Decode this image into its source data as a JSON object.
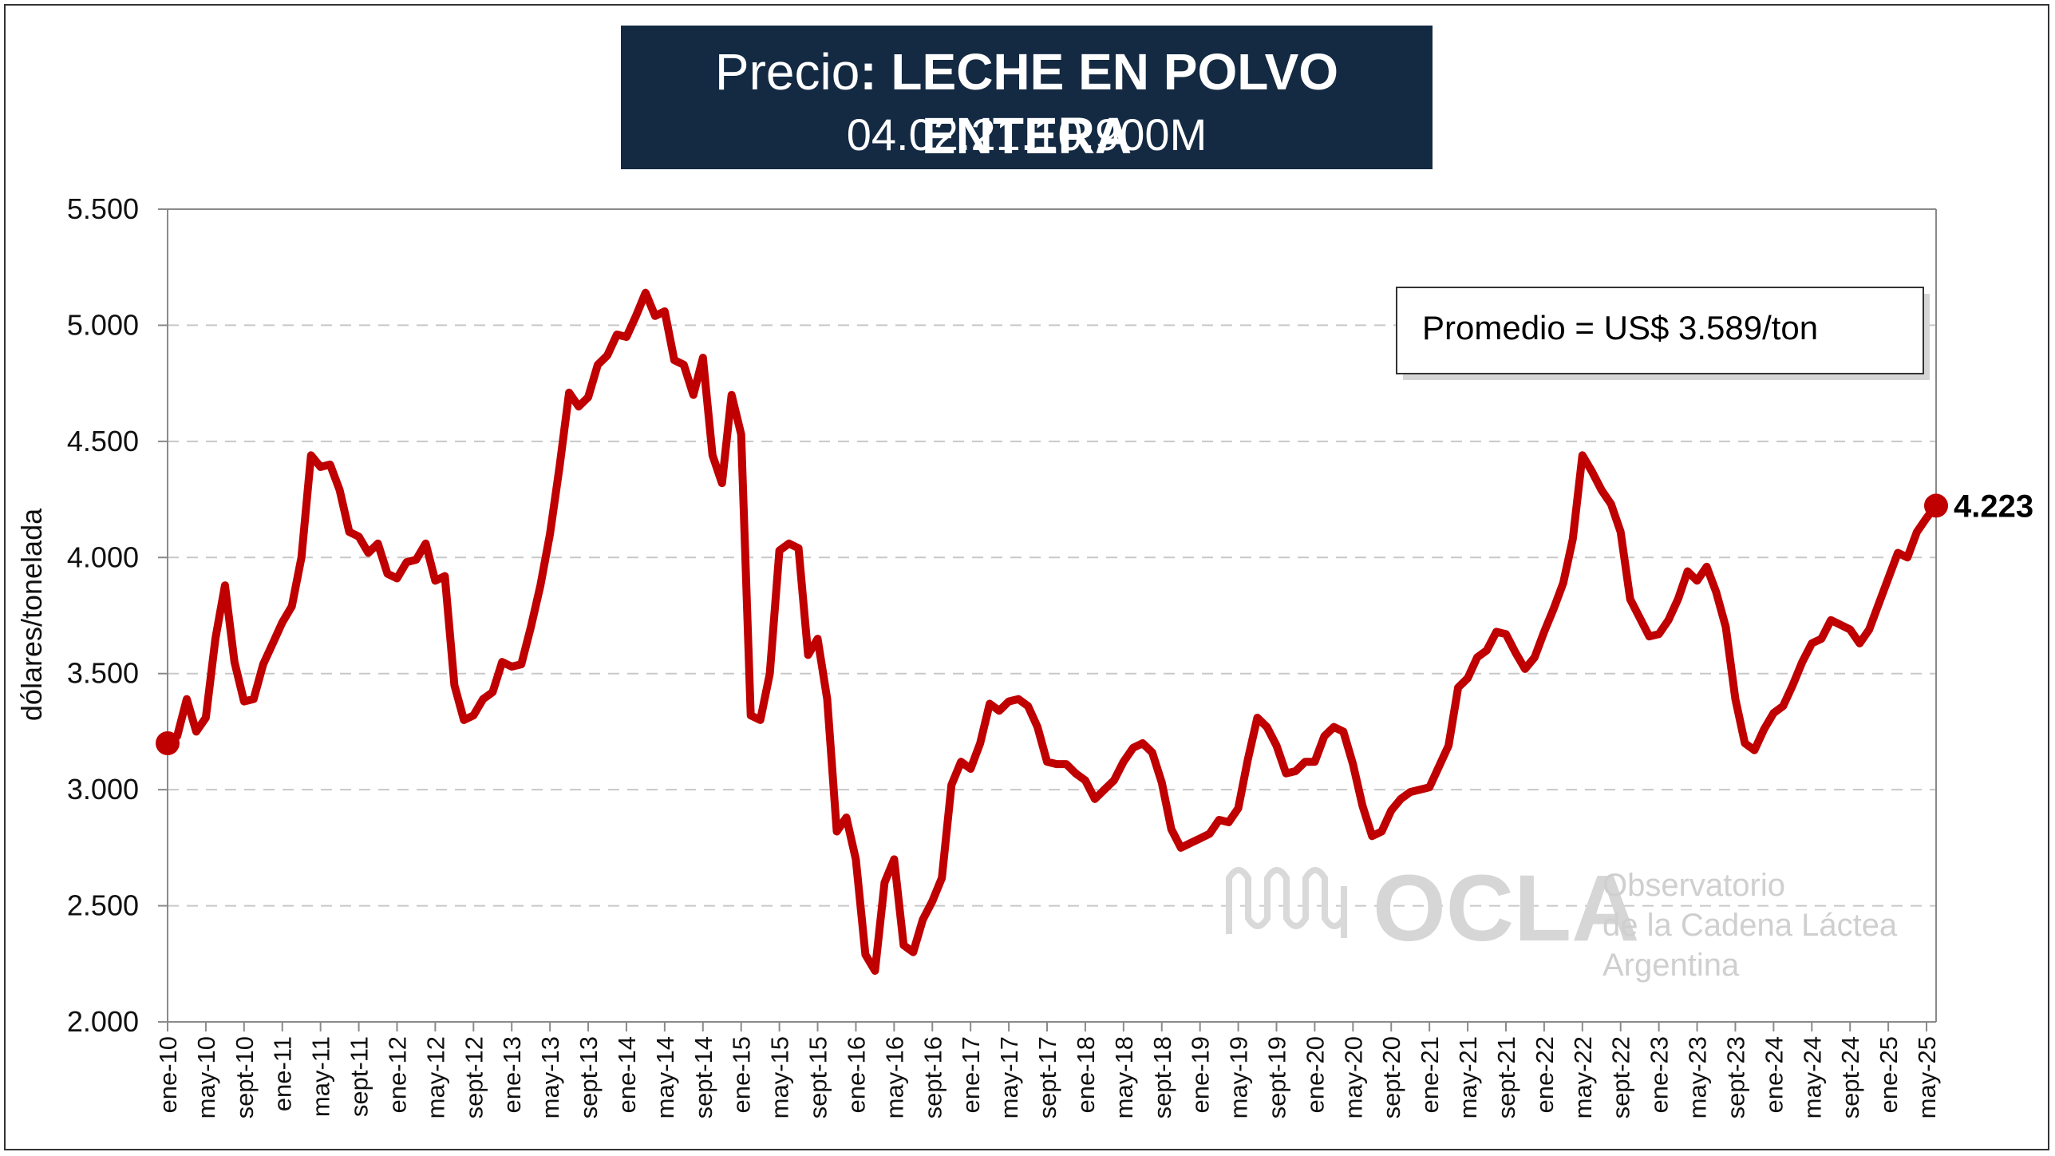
{
  "title": {
    "prefix": "Precio",
    "bold": ": LECHE EN POLVO ENTERA",
    "code": "04.02.21.10.900M"
  },
  "average_box": "Promedio = US$ 3.589/ton",
  "end_label": "4.223",
  "watermark": {
    "brand": "OCLA",
    "line1": "Observatorio",
    "line2": "de la Cadena Láctea",
    "line3": "Argentina"
  },
  "colors": {
    "series": "#c00000",
    "title_bg": "#142a43"
  },
  "chart_data": {
    "type": "line",
    "ylabel": "dólares/tonelada",
    "ylim": [
      2000,
      5500
    ],
    "yticks": [
      2000,
      2500,
      3000,
      3500,
      4000,
      4500,
      5000,
      5500
    ],
    "ytick_labels": [
      "2.000",
      "2.500",
      "3.000",
      "3.500",
      "4.000",
      "4.500",
      "5.000",
      "5.500"
    ],
    "grid": "horizontal dashed",
    "x_tick_labels": [
      "ene-10",
      "may-10",
      "sept-10",
      "ene-11",
      "may-11",
      "sept-11",
      "ene-12",
      "may-12",
      "sept-12",
      "ene-13",
      "may-13",
      "sept-13",
      "ene-14",
      "may-14",
      "sept-14",
      "ene-15",
      "may-15",
      "sept-15",
      "ene-16",
      "may-16",
      "sept-16",
      "ene-17",
      "may-17",
      "sept-17",
      "ene-18",
      "may-18",
      "sept-18",
      "ene-19",
      "may-19",
      "sept-19",
      "ene-20",
      "may-20",
      "sept-20",
      "ene-21",
      "may-21",
      "sept-21",
      "ene-22",
      "may-22",
      "sept-22",
      "ene-23",
      "may-23",
      "sept-23",
      "ene-24",
      "may-24",
      "sept-24",
      "ene-25",
      "may-25"
    ],
    "x_tick_interval_months": 4,
    "start_month": "ene-10",
    "series": [
      {
        "values": [
          3200,
          3230,
          3390,
          3250,
          3310,
          3650,
          3880,
          3550,
          3380,
          3390,
          3540,
          3630,
          3720,
          3790,
          4000,
          4440,
          4390,
          4400,
          4290,
          4110,
          4090,
          4020,
          4060,
          3930,
          3910,
          3980,
          3990,
          4060,
          3900,
          3920,
          3450,
          3300,
          3320,
          3390,
          3420,
          3550,
          3530,
          3540,
          3700,
          3880,
          4100,
          4390,
          4710,
          4650,
          4690,
          4830,
          4870,
          4960,
          4950,
          5040,
          5140,
          5040,
          5060,
          4850,
          4830,
          4700,
          4860,
          4440,
          4320,
          4700,
          4530,
          3320,
          3300,
          3500,
          4030,
          4060,
          4040,
          3580,
          3650,
          3390,
          2820,
          2880,
          2700,
          2290,
          2220,
          2600,
          2700,
          2330,
          2300,
          2440,
          2520,
          2620,
          3020,
          3120,
          3090,
          3200,
          3370,
          3340,
          3380,
          3390,
          3360,
          3270,
          3120,
          3110,
          3110,
          3070,
          3040,
          2960,
          3000,
          3040,
          3120,
          3180,
          3200,
          3160,
          3030,
          2830,
          2750,
          2770,
          2790,
          2810,
          2870,
          2860,
          2920,
          3130,
          3310,
          3270,
          3190,
          3070,
          3080,
          3120,
          3120,
          3230,
          3270,
          3250,
          3110,
          2930,
          2800,
          2820,
          2910,
          2960,
          2990,
          3000,
          3010,
          3100,
          3190,
          3440,
          3480,
          3570,
          3600,
          3680,
          3670,
          3590,
          3520,
          3570,
          3680,
          3780,
          3890,
          4080,
          4440,
          4370,
          4290,
          4230,
          4110,
          3820,
          3740,
          3660,
          3670,
          3730,
          3820,
          3940,
          3900,
          3960,
          3850,
          3700,
          3390,
          3200,
          3170,
          3260,
          3330,
          3360,
          3450,
          3550,
          3630,
          3650,
          3730,
          3710,
          3690,
          3630,
          3690,
          3800,
          3910,
          4020,
          4000,
          4110,
          4170,
          4223
        ]
      }
    ],
    "last_value": 4223,
    "average": 3589
  }
}
